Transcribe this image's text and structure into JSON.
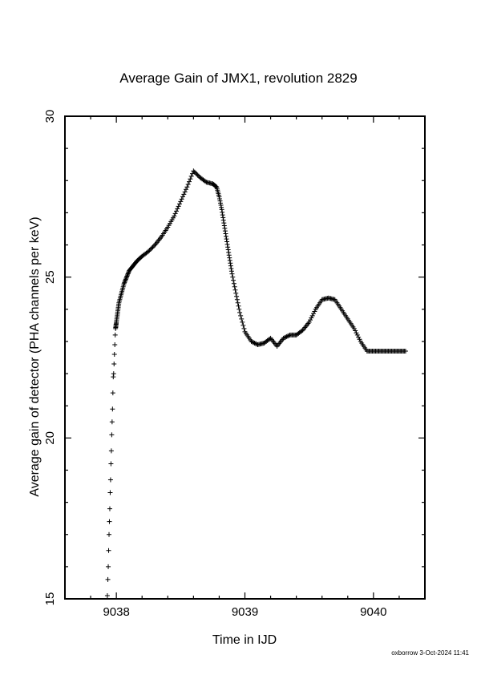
{
  "chart_data": {
    "type": "scatter",
    "title": "Average Gain of JMX1, revolution 2829",
    "xlabel": "Time in IJD",
    "ylabel": "Average gain of detector (PHA channels per keV)",
    "xlim": [
      9037.6,
      9040.4
    ],
    "ylim": [
      15,
      30
    ],
    "xticks": [
      9038,
      9039,
      9040
    ],
    "yticks": [
      15,
      20,
      25,
      30
    ],
    "marker": "+",
    "color": "#000000",
    "grid": false,
    "legend": "none",
    "series": [
      {
        "x": [
          9037.93,
          9037.934,
          9037.937,
          9037.94,
          9037.943,
          9037.946,
          9037.949,
          9037.952,
          9037.955,
          9037.958,
          9037.961,
          9037.964,
          9037.967,
          9037.97,
          9037.973,
          9037.976,
          9037.979,
          9037.982,
          9037.985,
          9037.988,
          9037.991,
          9037.994,
          9038.0,
          9038.01,
          9038.02,
          9038.04,
          9038.06,
          9038.08,
          9038.1,
          9038.13,
          9038.16,
          9038.2,
          9038.25,
          9038.3,
          9038.35,
          9038.4,
          9038.45,
          9038.5,
          9038.55,
          9038.6,
          9038.65,
          9038.7,
          9038.75,
          9038.78,
          9038.8,
          9038.82,
          9038.84,
          9038.86,
          9038.88,
          9038.9,
          9038.93,
          9038.96,
          9039.0,
          9039.05,
          9039.1,
          9039.15,
          9039.2,
          9039.25,
          9039.3,
          9039.35,
          9039.4,
          9039.45,
          9039.5,
          9039.55,
          9039.6,
          9039.65,
          9039.7,
          9039.75,
          9039.8,
          9039.85,
          9039.9,
          9039.95,
          9040.0,
          9040.05,
          9040.1,
          9040.15,
          9040.2,
          9040.25
        ],
        "y": [
          15.1,
          15.6,
          16.0,
          16.5,
          17.0,
          17.4,
          17.8,
          18.3,
          18.7,
          19.2,
          19.6,
          20.1,
          20.5,
          20.9,
          21.4,
          21.9,
          22.0,
          22.3,
          22.6,
          22.9,
          23.2,
          23.4,
          23.6,
          23.9,
          24.2,
          24.5,
          24.8,
          25.0,
          25.2,
          25.35,
          25.5,
          25.65,
          25.8,
          26.0,
          26.25,
          26.55,
          26.9,
          27.35,
          27.8,
          28.3,
          28.1,
          27.95,
          27.9,
          27.8,
          27.5,
          27.1,
          26.6,
          26.1,
          25.6,
          25.1,
          24.5,
          23.9,
          23.3,
          23.0,
          22.9,
          22.95,
          23.1,
          22.85,
          23.1,
          23.2,
          23.2,
          23.35,
          23.6,
          24.0,
          24.3,
          24.35,
          24.3,
          24.0,
          23.7,
          23.4,
          23.0,
          22.7,
          22.7,
          22.7,
          22.7,
          22.7,
          22.7,
          22.7
        ]
      }
    ]
  },
  "footer": "oxborrow  3-Oct-2024 11:41"
}
